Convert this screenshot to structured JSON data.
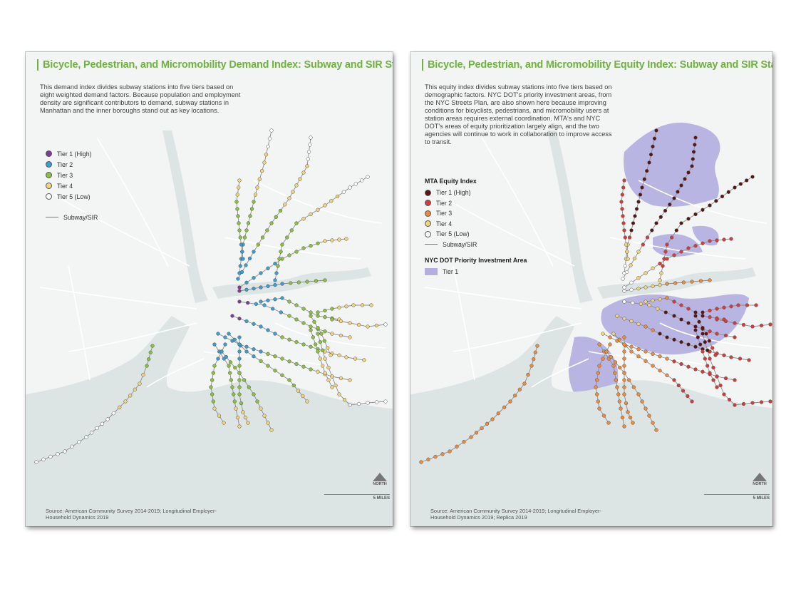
{
  "colors": {
    "land": "#f3f5f5",
    "water": "#dde4e4",
    "road": "#ffffff",
    "subway": "#8c8c8c",
    "priority_area": "#b2aee0",
    "demand_title": "#6fb23f"
  },
  "demand_map": {
    "title": "Bicycle, Pedestrian, and Micromobility Demand Index: Subway and SIR Stations",
    "description": "This demand index divides subway stations into five tiers based on eight weighted demand factors. Because population and employment density are significant contributors to demand, subway stations in Manhattan and the inner boroughs stand out as key locations.",
    "legend": [
      {
        "label": "Tier 1 (High)",
        "color": "#7d3c98"
      },
      {
        "label": "Tier 2",
        "color": "#3d9ccf"
      },
      {
        "label": "Tier 3",
        "color": "#8bbf3f"
      },
      {
        "label": "Tier 4",
        "color": "#f2d27a"
      },
      {
        "label": "Tier 5 (Low)",
        "color": "#ffffff"
      }
    ],
    "line_label": "Subway/SIR",
    "source": "Source: American Community Survey 2014-2019; Longitudinal Employer-Household Dynamics 2019",
    "north": "NORTH",
    "scale": "5 MILES"
  },
  "equity_map": {
    "title": "Bicycle, Pedestrian, and Micromobility Equity Index: Subway and SIR Stations",
    "description": "This equity index divides subway stations into five tiers based on demographic factors. NYC DOT's priority investment areas, from the NYC Streets Plan, are also shown here because improving conditions for bicyclists, pedestrians, and micromobility users at station areas requires external coordination. MTA's and NYC DOT's areas of equity prioritization largely align, and the two agencies will continue to work in collaboration to improve access to transit.",
    "legend_title": "MTA Equity Index",
    "legend": [
      {
        "label": "Tier 1 (High)",
        "color": "#5a1414"
      },
      {
        "label": "Tier 2",
        "color": "#d83a3a"
      },
      {
        "label": "Tier 3",
        "color": "#ee8a3a"
      },
      {
        "label": "Tier 4",
        "color": "#f2d27a"
      },
      {
        "label": "Tier 5 (Low)",
        "color": "#ffffff"
      }
    ],
    "line_label": "Subway/SIR",
    "priority_title": "NYC DOT Priority Investment Area",
    "priority_label": "Tier 1",
    "source": "Source: American Community Survey 2014-2019; Longitudinal Employer-Household Dynamics 2019; Replica 2019",
    "north": "NORTH",
    "scale": "5 MILES"
  }
}
